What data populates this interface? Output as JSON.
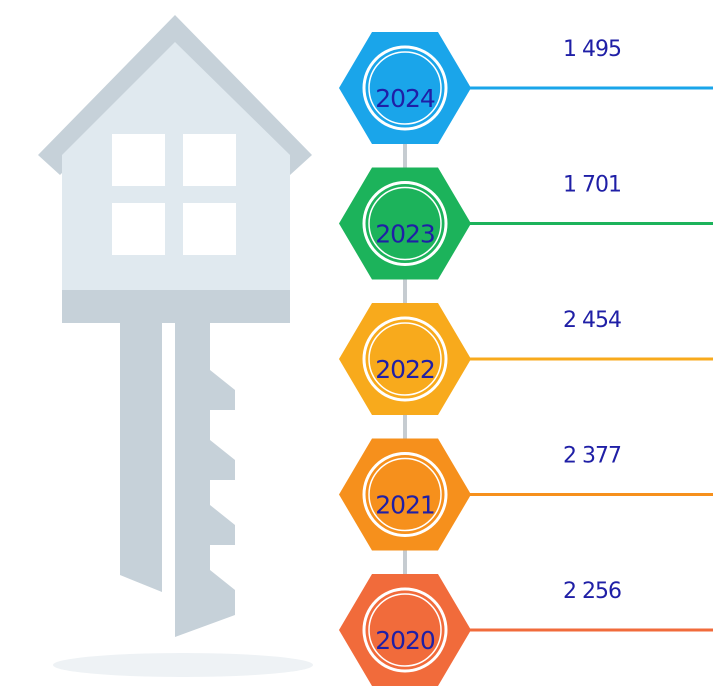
{
  "items": [
    {
      "year": "2024",
      "value": "1 495",
      "color": "#1aa5ea"
    },
    {
      "year": "2023",
      "value": "1 701",
      "color": "#1cb35b"
    },
    {
      "year": "2022",
      "value": "2 454",
      "color": "#f8aa1c"
    },
    {
      "year": "2021",
      "value": "2 377",
      "color": "#f6901c"
    },
    {
      "year": "2020",
      "value": "2 256",
      "color": "#f16b3b"
    }
  ]
}
